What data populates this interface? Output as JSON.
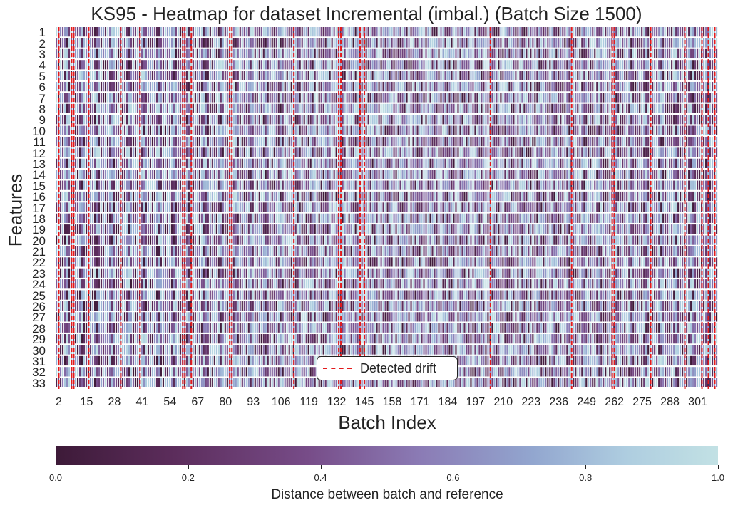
{
  "chart_data": {
    "type": "heatmap",
    "title": "KS95 - Heatmap for dataset Incremental (imbal.) (Batch Size 1500)",
    "xlabel": "Batch Index",
    "ylabel": "Features",
    "y_categories": [
      "1",
      "2",
      "3",
      "4",
      "5",
      "6",
      "7",
      "8",
      "9",
      "10",
      "11",
      "12",
      "13",
      "14",
      "15",
      "16",
      "17",
      "18",
      "19",
      "20",
      "21",
      "22",
      "23",
      "24",
      "25",
      "26",
      "27",
      "28",
      "29",
      "30",
      "31",
      "32",
      "33"
    ],
    "x_tick_labels": [
      "2",
      "15",
      "28",
      "41",
      "54",
      "67",
      "80",
      "93",
      "106",
      "119",
      "132",
      "145",
      "158",
      "171",
      "184",
      "197",
      "210",
      "223",
      "236",
      "249",
      "262",
      "275",
      "288",
      "301"
    ],
    "x_range": [
      1,
      310
    ],
    "value_range": [
      0.0,
      1.0
    ],
    "colormap": [
      "#3d1a38",
      "#5c2d5c",
      "#774c88",
      "#8b7bb5",
      "#92a6cf",
      "#aecde0",
      "#c2e1e4"
    ],
    "drift_color": "#e31a1c",
    "detected_drift_batches": [
      2,
      8,
      9,
      16,
      31,
      40,
      60,
      61,
      64,
      82,
      83,
      112,
      133,
      134,
      143,
      145,
      204,
      242,
      261,
      262,
      279,
      295,
      303,
      306,
      309
    ],
    "legend": {
      "label": "Detected drift",
      "position": "lower center"
    },
    "colorbar": {
      "label": "Distance between batch and reference",
      "ticks": [
        "0.0",
        "0.2",
        "0.4",
        "0.6",
        "0.8",
        "1.0"
      ]
    }
  }
}
